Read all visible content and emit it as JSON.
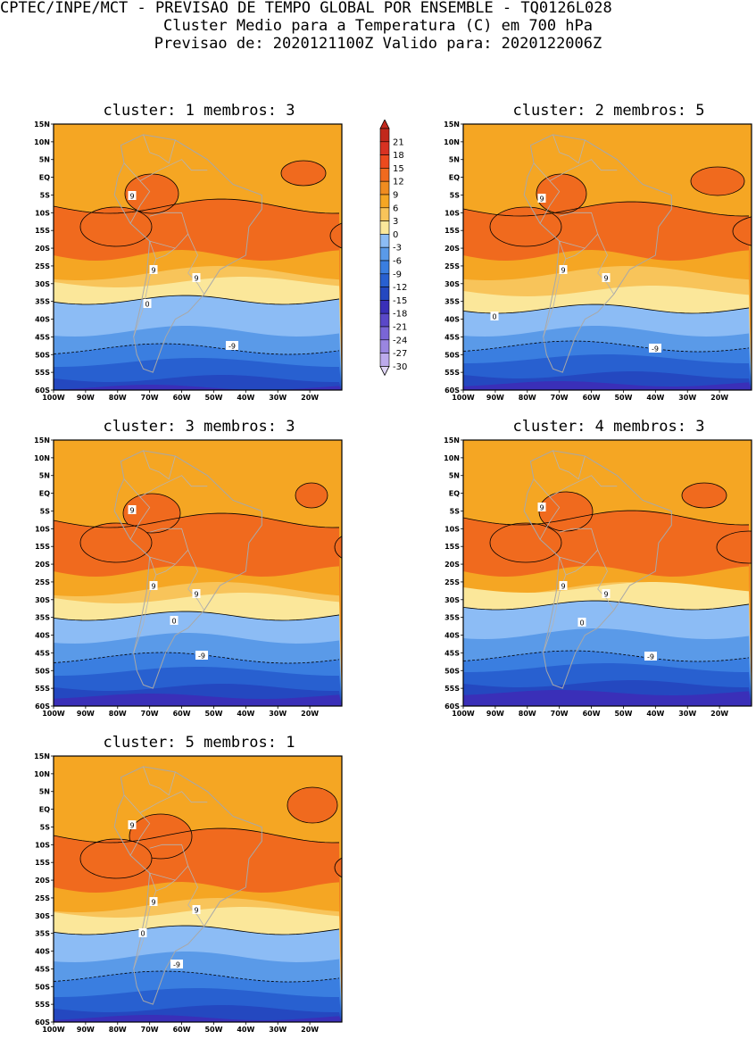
{
  "header": {
    "line1": "CPTEC/INPE/MCT - PREVISAO DE TEMPO GLOBAL POR ENSEMBLE - TQ0126L028",
    "line2": "Cluster Medio para a Temperatura (C) em 700 hPa",
    "line3": "Previsao de: 2020121100Z   Valido para: 2020122006Z"
  },
  "panels": [
    {
      "title": "cluster: 1  membros: 3"
    },
    {
      "title": "cluster: 2  membros: 5"
    },
    {
      "title": "cluster: 3  membros: 3"
    },
    {
      "title": "cluster: 4  membros: 3"
    },
    {
      "title": "cluster: 5  membros: 1"
    }
  ],
  "map_axes": {
    "lat_labels": [
      "15N",
      "10N",
      "5N",
      "EQ",
      "5S",
      "10S",
      "15S",
      "20S",
      "25S",
      "30S",
      "35S",
      "40S",
      "45S",
      "50S",
      "55S",
      "60S"
    ],
    "lon_labels": [
      "100W",
      "90W",
      "80W",
      "70W",
      "60W",
      "50W",
      "40W",
      "30W",
      "20W"
    ]
  },
  "contour_labels": {
    "warm": "9",
    "zero": "0",
    "cold": "-9"
  },
  "colorbar": {
    "labels": [
      "21",
      "18",
      "15",
      "12",
      "9",
      "6",
      "3",
      "0",
      "-3",
      "-6",
      "-9",
      "-12",
      "-15",
      "-18",
      "-21",
      "-24",
      "-27",
      "-30"
    ],
    "colors": [
      "#c2281c",
      "#d83222",
      "#ec4a1e",
      "#f06a1e",
      "#f08c20",
      "#f5a623",
      "#f8c45a",
      "#fbe79a",
      "#8cbcf5",
      "#5a9ae8",
      "#3a7ee0",
      "#2860d0",
      "#2448c0",
      "#3a2fb8",
      "#5a48c8",
      "#7a66d6",
      "#9a86e0",
      "#bcaaec",
      "#e0d6f6"
    ]
  }
}
